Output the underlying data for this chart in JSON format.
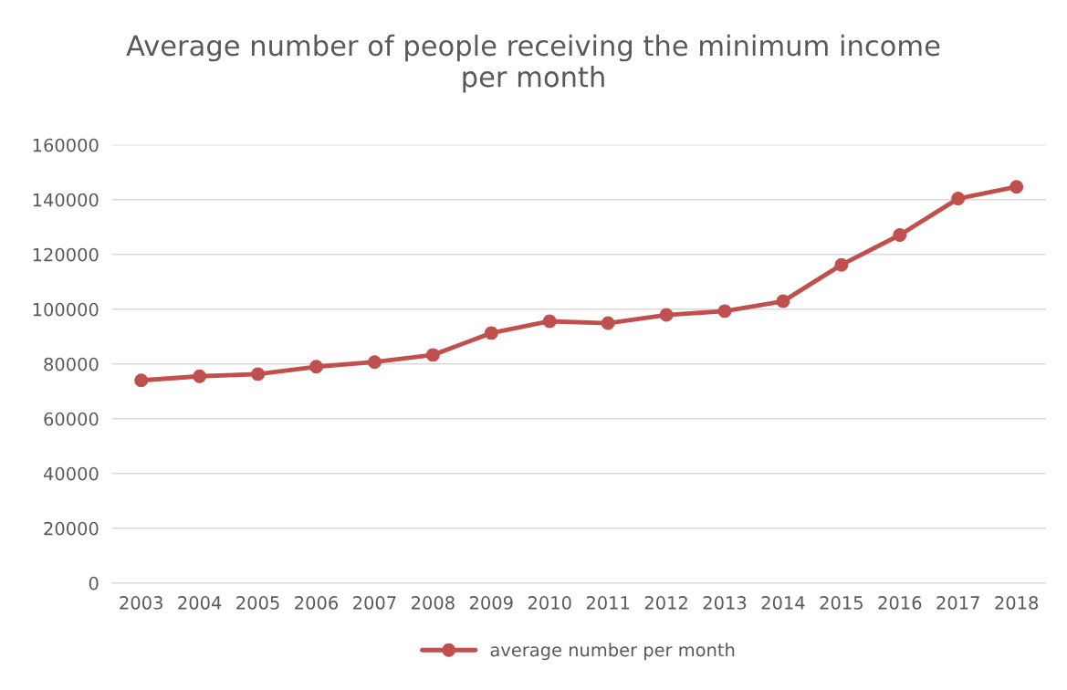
{
  "chart_data": {
    "type": "line",
    "title": "Average number of people receiving the minimum income\nper month",
    "categories": [
      "2003",
      "2004",
      "2005",
      "2006",
      "2007",
      "2008",
      "2009",
      "2010",
      "2011",
      "2012",
      "2013",
      "2014",
      "2015",
      "2016",
      "2017",
      "2018"
    ],
    "series": [
      {
        "name": "average number per month",
        "color": "#c0504d",
        "values": [
          74000,
          75500,
          76300,
          79000,
          80700,
          83300,
          91300,
          95600,
          94900,
          97900,
          99300,
          102900,
          116200,
          127100,
          140400,
          144700
        ]
      }
    ],
    "ylim": [
      0,
      160000
    ],
    "yticks": [
      0,
      20000,
      40000,
      60000,
      80000,
      100000,
      120000,
      140000,
      160000
    ],
    "grid": "y",
    "legend": "bottom",
    "marker": "circle",
    "line_style": "solid"
  }
}
